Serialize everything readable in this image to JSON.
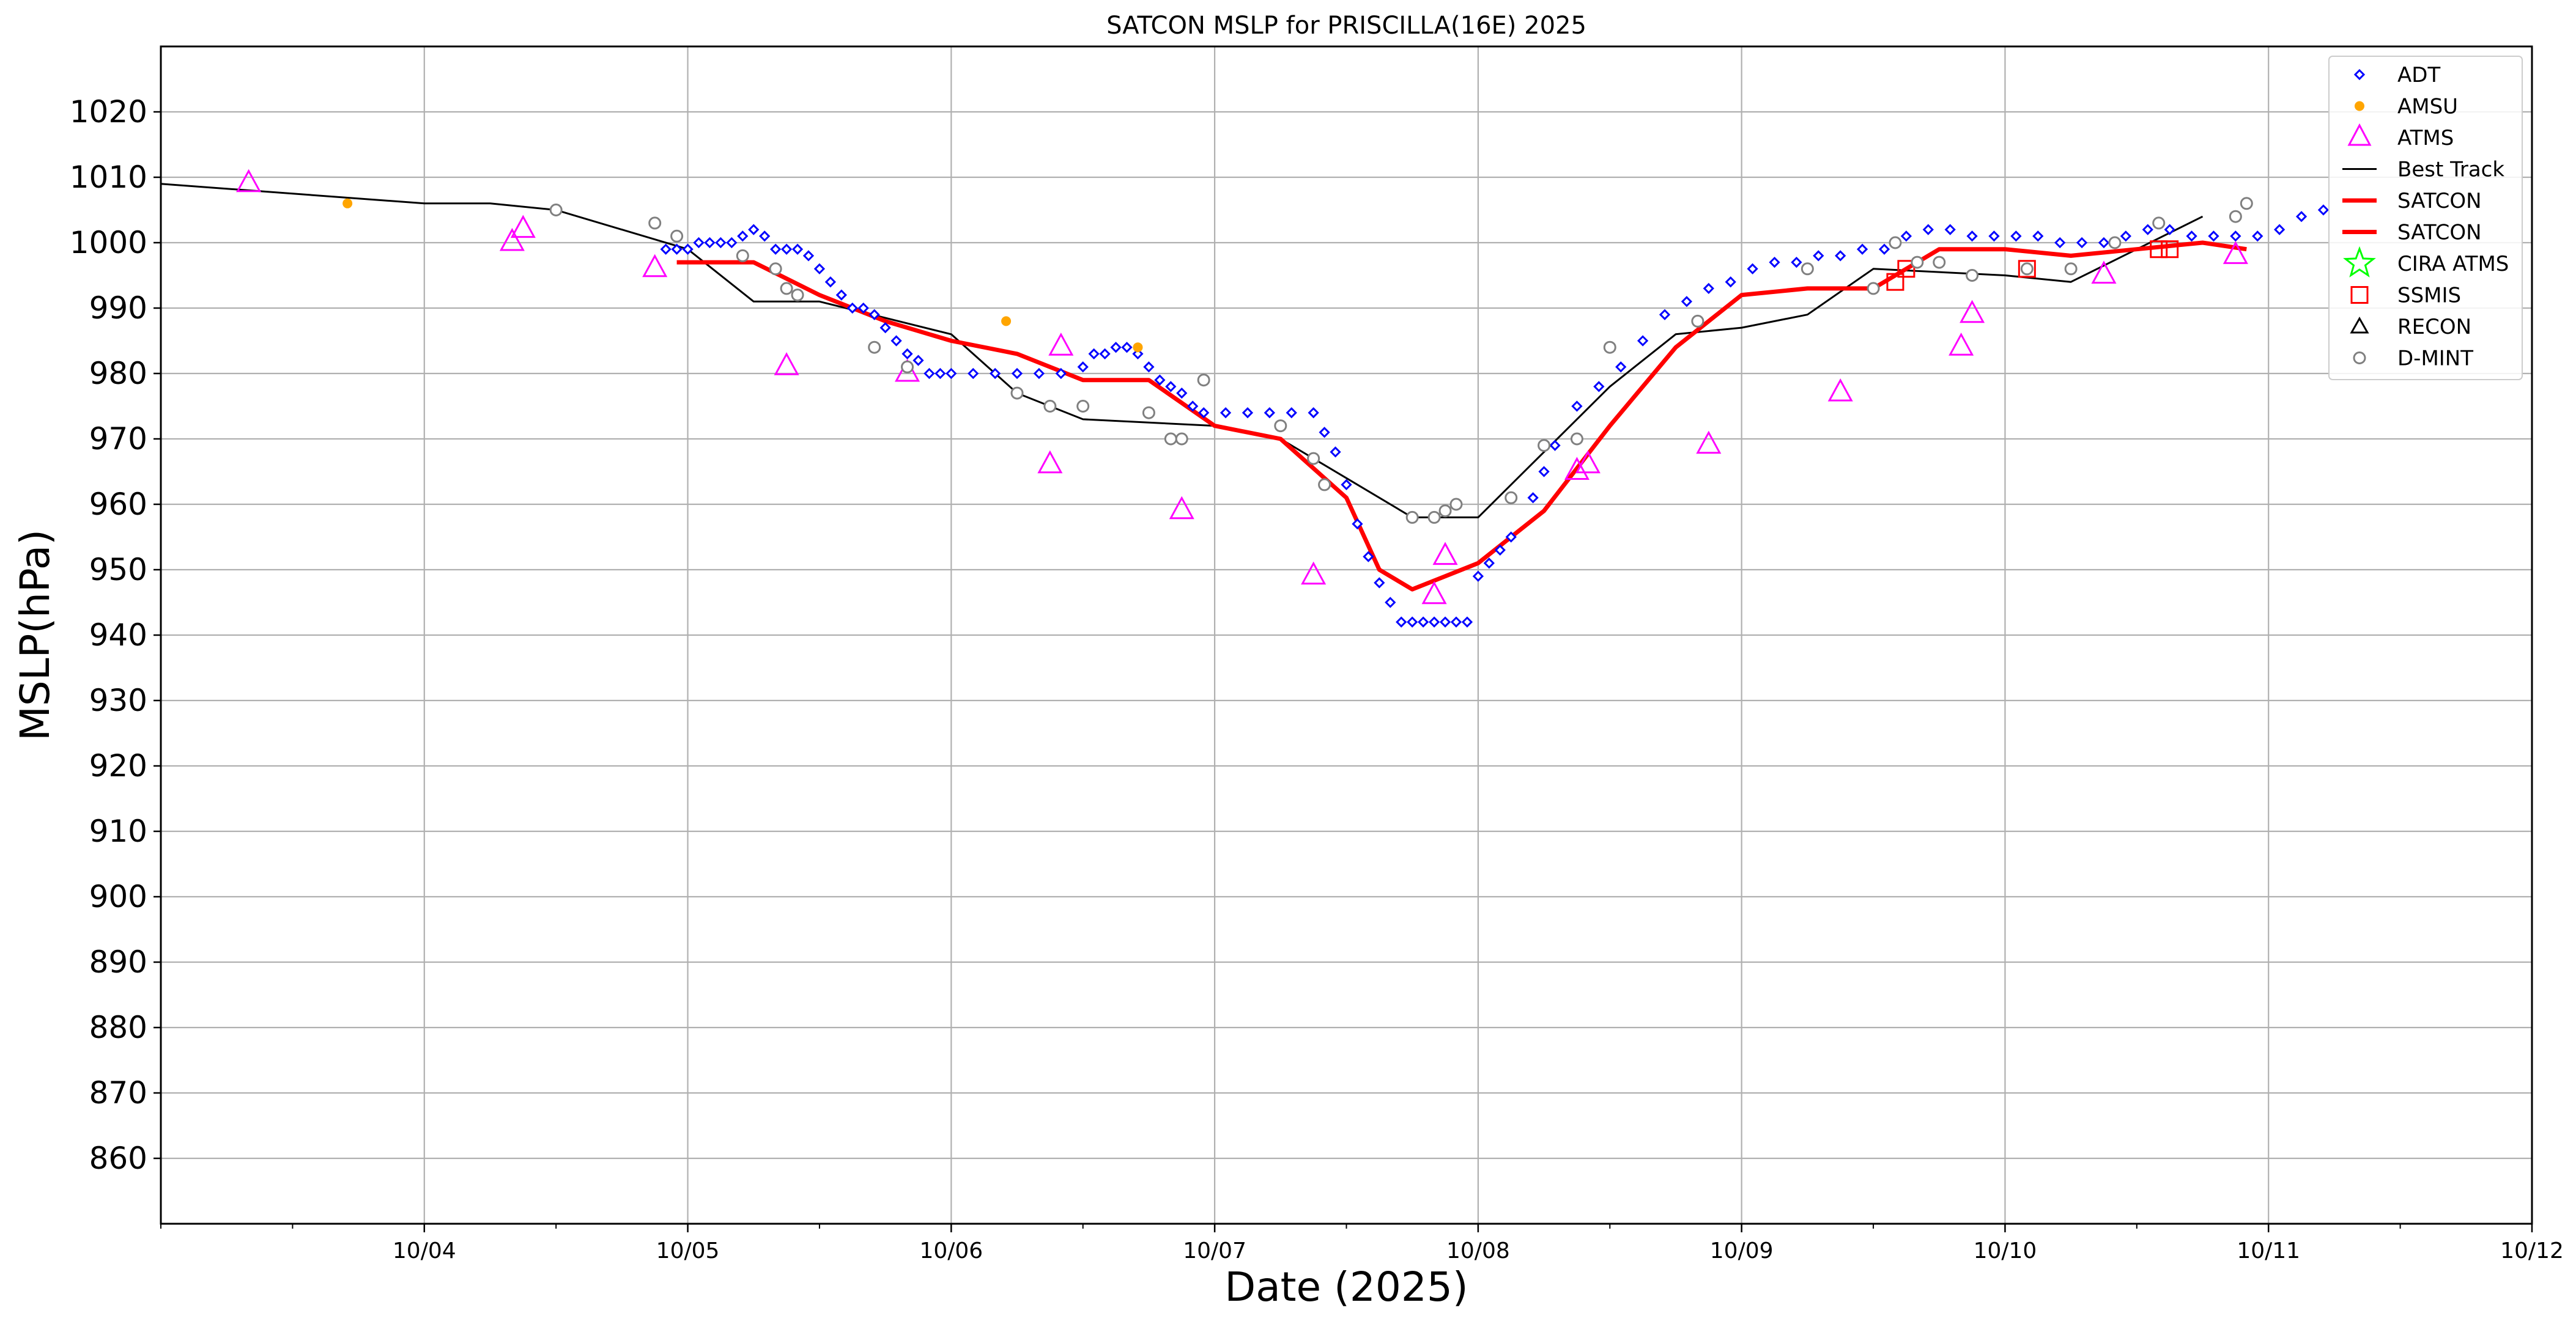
{
  "chart_data": {
    "type": "scatter",
    "title": "SATCON MSLP for PRISCILLA(16E) 2025",
    "xlabel": "Date (2025)",
    "ylabel": "MSLP(hPa)",
    "xlim": [
      "2025-10-03T00:00",
      "2025-10-12T00:00"
    ],
    "ylim": [
      850,
      1030
    ],
    "yticks": [
      860,
      870,
      880,
      890,
      900,
      910,
      920,
      930,
      940,
      950,
      960,
      970,
      980,
      990,
      1000,
      1010,
      1020
    ],
    "xticks": [
      {
        "date": "2025-10-04",
        "label": "10/04"
      },
      {
        "date": "2025-10-05",
        "label": "10/05"
      },
      {
        "date": "2025-10-06",
        "label": "10/06"
      },
      {
        "date": "2025-10-07",
        "label": "10/07"
      },
      {
        "date": "2025-10-08",
        "label": "10/08"
      },
      {
        "date": "2025-10-09",
        "label": "10/09"
      },
      {
        "date": "2025-10-10",
        "label": "10/10"
      },
      {
        "date": "2025-10-11",
        "label": "10/11"
      },
      {
        "date": "2025-10-12",
        "label": "10/12"
      }
    ],
    "grid": true,
    "legend_position": "top-right",
    "colors": {
      "adt": "#0000ff",
      "amsu": "#ffa500",
      "atms": "#ff00ff",
      "best_track": "#000000",
      "satcon": "#ff0000",
      "cira_atms": "#00ff00",
      "ssmis": "#ff0000",
      "recon": "#000000",
      "dmint": "#808080"
    },
    "legend": [
      {
        "key": "adt",
        "label": "ADT",
        "marker": "diamond"
      },
      {
        "key": "amsu",
        "label": "AMSU",
        "marker": "dot"
      },
      {
        "key": "atms",
        "label": "ATMS",
        "marker": "triangle"
      },
      {
        "key": "best_track",
        "label": "Best Track",
        "marker": "line"
      },
      {
        "key": "satcon",
        "label": "SATCON",
        "marker": "thickline"
      },
      {
        "key": "satcon",
        "label": "SATCON",
        "marker": "thickline"
      },
      {
        "key": "cira_atms",
        "label": "CIRA ATMS",
        "marker": "star"
      },
      {
        "key": "ssmis",
        "label": "SSMIS",
        "marker": "square"
      },
      {
        "key": "recon",
        "label": "RECON",
        "marker": "triangle"
      },
      {
        "key": "dmint",
        "label": "D-MINT",
        "marker": "circle"
      }
    ],
    "series": [
      {
        "name": "ADT",
        "kind": "scatter",
        "points": [
          [
            "2025-10-04T22:00",
            999
          ],
          [
            "2025-10-04T23:00",
            999
          ],
          [
            "2025-10-05T00:00",
            999
          ],
          [
            "2025-10-05T01:00",
            1000
          ],
          [
            "2025-10-05T02:00",
            1000
          ],
          [
            "2025-10-05T03:00",
            1000
          ],
          [
            "2025-10-05T04:00",
            1000
          ],
          [
            "2025-10-05T05:00",
            1001
          ],
          [
            "2025-10-05T06:00",
            1002
          ],
          [
            "2025-10-05T07:00",
            1001
          ],
          [
            "2025-10-05T08:00",
            999
          ],
          [
            "2025-10-05T09:00",
            999
          ],
          [
            "2025-10-05T10:00",
            999
          ],
          [
            "2025-10-05T11:00",
            998
          ],
          [
            "2025-10-05T12:00",
            996
          ],
          [
            "2025-10-05T13:00",
            994
          ],
          [
            "2025-10-05T14:00",
            992
          ],
          [
            "2025-10-05T15:00",
            990
          ],
          [
            "2025-10-05T16:00",
            990
          ],
          [
            "2025-10-05T17:00",
            989
          ],
          [
            "2025-10-05T18:00",
            987
          ],
          [
            "2025-10-05T19:00",
            985
          ],
          [
            "2025-10-05T20:00",
            983
          ],
          [
            "2025-10-05T21:00",
            982
          ],
          [
            "2025-10-05T22:00",
            980
          ],
          [
            "2025-10-05T23:00",
            980
          ],
          [
            "2025-10-06T00:00",
            980
          ],
          [
            "2025-10-06T02:00",
            980
          ],
          [
            "2025-10-06T04:00",
            980
          ],
          [
            "2025-10-06T06:00",
            980
          ],
          [
            "2025-10-06T08:00",
            980
          ],
          [
            "2025-10-06T10:00",
            980
          ],
          [
            "2025-10-06T12:00",
            981
          ],
          [
            "2025-10-06T13:00",
            983
          ],
          [
            "2025-10-06T14:00",
            983
          ],
          [
            "2025-10-06T15:00",
            984
          ],
          [
            "2025-10-06T16:00",
            984
          ],
          [
            "2025-10-06T17:00",
            983
          ],
          [
            "2025-10-06T18:00",
            981
          ],
          [
            "2025-10-06T19:00",
            979
          ],
          [
            "2025-10-06T20:00",
            978
          ],
          [
            "2025-10-06T21:00",
            977
          ],
          [
            "2025-10-06T22:00",
            975
          ],
          [
            "2025-10-06T23:00",
            974
          ],
          [
            "2025-10-07T01:00",
            974
          ],
          [
            "2025-10-07T03:00",
            974
          ],
          [
            "2025-10-07T05:00",
            974
          ],
          [
            "2025-10-07T07:00",
            974
          ],
          [
            "2025-10-07T09:00",
            974
          ],
          [
            "2025-10-07T10:00",
            971
          ],
          [
            "2025-10-07T11:00",
            968
          ],
          [
            "2025-10-07T12:00",
            963
          ],
          [
            "2025-10-07T13:00",
            957
          ],
          [
            "2025-10-07T14:00",
            952
          ],
          [
            "2025-10-07T15:00",
            948
          ],
          [
            "2025-10-07T16:00",
            945
          ],
          [
            "2025-10-07T17:00",
            942
          ],
          [
            "2025-10-07T18:00",
            942
          ],
          [
            "2025-10-07T19:00",
            942
          ],
          [
            "2025-10-07T20:00",
            942
          ],
          [
            "2025-10-07T21:00",
            942
          ],
          [
            "2025-10-07T22:00",
            942
          ],
          [
            "2025-10-07T23:00",
            942
          ],
          [
            "2025-10-08T00:00",
            949
          ],
          [
            "2025-10-08T01:00",
            951
          ],
          [
            "2025-10-08T02:00",
            953
          ],
          [
            "2025-10-08T03:00",
            955
          ],
          [
            "2025-10-08T05:00",
            961
          ],
          [
            "2025-10-08T06:00",
            965
          ],
          [
            "2025-10-08T07:00",
            969
          ],
          [
            "2025-10-08T09:00",
            975
          ],
          [
            "2025-10-08T11:00",
            978
          ],
          [
            "2025-10-08T13:00",
            981
          ],
          [
            "2025-10-08T15:00",
            985
          ],
          [
            "2025-10-08T17:00",
            989
          ],
          [
            "2025-10-08T19:00",
            991
          ],
          [
            "2025-10-08T21:00",
            993
          ],
          [
            "2025-10-08T23:00",
            994
          ],
          [
            "2025-10-09T01:00",
            996
          ],
          [
            "2025-10-09T03:00",
            997
          ],
          [
            "2025-10-09T05:00",
            997
          ],
          [
            "2025-10-09T07:00",
            998
          ],
          [
            "2025-10-09T09:00",
            998
          ],
          [
            "2025-10-09T11:00",
            999
          ],
          [
            "2025-10-09T13:00",
            999
          ],
          [
            "2025-10-09T15:00",
            1001
          ],
          [
            "2025-10-09T17:00",
            1002
          ],
          [
            "2025-10-09T19:00",
            1002
          ],
          [
            "2025-10-09T21:00",
            1001
          ],
          [
            "2025-10-09T23:00",
            1001
          ],
          [
            "2025-10-10T01:00",
            1001
          ],
          [
            "2025-10-10T03:00",
            1001
          ],
          [
            "2025-10-10T05:00",
            1000
          ],
          [
            "2025-10-10T07:00",
            1000
          ],
          [
            "2025-10-10T09:00",
            1000
          ],
          [
            "2025-10-10T11:00",
            1001
          ],
          [
            "2025-10-10T13:00",
            1002
          ],
          [
            "2025-10-10T15:00",
            1002
          ],
          [
            "2025-10-10T17:00",
            1001
          ],
          [
            "2025-10-10T19:00",
            1001
          ],
          [
            "2025-10-10T21:00",
            1001
          ],
          [
            "2025-10-10T23:00",
            1001
          ],
          [
            "2025-10-11T01:00",
            1002
          ],
          [
            "2025-10-11T03:00",
            1004
          ],
          [
            "2025-10-11T05:00",
            1005
          ]
        ]
      },
      {
        "name": "AMSU",
        "kind": "scatter",
        "points": [
          [
            "2025-10-03T17:00",
            1006
          ],
          [
            "2025-10-06T05:00",
            988
          ],
          [
            "2025-10-06T17:00",
            984
          ]
        ]
      },
      {
        "name": "ATMS",
        "kind": "scatter",
        "points": [
          [
            "2025-10-03T08:00",
            1009
          ],
          [
            "2025-10-04T08:00",
            1000
          ],
          [
            "2025-10-04T09:00",
            1002
          ],
          [
            "2025-10-04T21:00",
            996
          ],
          [
            "2025-10-05T09:00",
            981
          ],
          [
            "2025-10-05T20:00",
            980
          ],
          [
            "2025-10-06T09:00",
            966
          ],
          [
            "2025-10-06T10:00",
            984
          ],
          [
            "2025-10-06T21:00",
            959
          ],
          [
            "2025-10-07T09:00",
            949
          ],
          [
            "2025-10-07T20:00",
            946
          ],
          [
            "2025-10-07T21:00",
            952
          ],
          [
            "2025-10-08T09:00",
            965
          ],
          [
            "2025-10-08T10:00",
            966
          ],
          [
            "2025-10-08T21:00",
            969
          ],
          [
            "2025-10-09T09:00",
            977
          ],
          [
            "2025-10-09T20:00",
            984
          ],
          [
            "2025-10-09T21:00",
            989
          ],
          [
            "2025-10-10T09:00",
            995
          ],
          [
            "2025-10-10T21:00",
            998
          ]
        ]
      },
      {
        "name": "Best Track",
        "kind": "line",
        "points": [
          [
            "2025-10-03T00:00",
            1009
          ],
          [
            "2025-10-04T00:00",
            1006
          ],
          [
            "2025-10-04T06:00",
            1006
          ],
          [
            "2025-10-04T12:00",
            1005
          ],
          [
            "2025-10-05T00:00",
            999
          ],
          [
            "2025-10-05T06:00",
            991
          ],
          [
            "2025-10-05T12:00",
            991
          ],
          [
            "2025-10-06T00:00",
            986
          ],
          [
            "2025-10-06T06:00",
            977
          ],
          [
            "2025-10-06T12:00",
            973
          ],
          [
            "2025-10-07T00:00",
            972
          ],
          [
            "2025-10-07T06:00",
            970
          ],
          [
            "2025-10-07T12:00",
            964
          ],
          [
            "2025-10-07T18:00",
            958
          ],
          [
            "2025-10-08T00:00",
            958
          ],
          [
            "2025-10-08T06:00",
            968
          ],
          [
            "2025-10-08T12:00",
            978
          ],
          [
            "2025-10-08T18:00",
            986
          ],
          [
            "2025-10-09T00:00",
            987
          ],
          [
            "2025-10-09T06:00",
            989
          ],
          [
            "2025-10-09T12:00",
            996
          ],
          [
            "2025-10-10T00:00",
            995
          ],
          [
            "2025-10-10T06:00",
            994
          ],
          [
            "2025-10-10T12:00",
            999
          ],
          [
            "2025-10-10T18:00",
            1004
          ]
        ]
      },
      {
        "name": "SATCON",
        "kind": "thickline",
        "points": [
          [
            "2025-10-04T23:00",
            997
          ],
          [
            "2025-10-05T06:00",
            997
          ],
          [
            "2025-10-05T12:00",
            992
          ],
          [
            "2025-10-05T18:00",
            988
          ],
          [
            "2025-10-06T00:00",
            985
          ],
          [
            "2025-10-06T06:00",
            983
          ],
          [
            "2025-10-06T12:00",
            979
          ],
          [
            "2025-10-06T18:00",
            979
          ],
          [
            "2025-10-07T00:00",
            972
          ],
          [
            "2025-10-07T06:00",
            970
          ],
          [
            "2025-10-07T12:00",
            961
          ],
          [
            "2025-10-07T15:00",
            950
          ],
          [
            "2025-10-07T18:00",
            947
          ],
          [
            "2025-10-07T21:00",
            949
          ],
          [
            "2025-10-08T00:00",
            951
          ],
          [
            "2025-10-08T06:00",
            959
          ],
          [
            "2025-10-08T12:00",
            972
          ],
          [
            "2025-10-08T18:00",
            984
          ],
          [
            "2025-10-09T00:00",
            992
          ],
          [
            "2025-10-09T06:00",
            993
          ],
          [
            "2025-10-09T12:00",
            993
          ],
          [
            "2025-10-09T18:00",
            999
          ],
          [
            "2025-10-10T00:00",
            999
          ],
          [
            "2025-10-10T06:00",
            998
          ],
          [
            "2025-10-10T12:00",
            999
          ],
          [
            "2025-10-10T18:00",
            1000
          ],
          [
            "2025-10-10T22:00",
            999
          ]
        ]
      },
      {
        "name": "SSMIS",
        "kind": "scatter",
        "points": [
          [
            "2025-10-09T14:00",
            994
          ],
          [
            "2025-10-09T15:00",
            996
          ],
          [
            "2025-10-10T02:00",
            996
          ],
          [
            "2025-10-10T14:00",
            999
          ],
          [
            "2025-10-10T15:00",
            999
          ]
        ]
      },
      {
        "name": "D-MINT",
        "kind": "scatter",
        "points": [
          [
            "2025-10-04T12:00",
            1005
          ],
          [
            "2025-10-04T21:00",
            1003
          ],
          [
            "2025-10-04T23:00",
            1001
          ],
          [
            "2025-10-05T05:00",
            998
          ],
          [
            "2025-10-05T08:00",
            996
          ],
          [
            "2025-10-05T09:00",
            993
          ],
          [
            "2025-10-05T10:00",
            992
          ],
          [
            "2025-10-05T17:00",
            984
          ],
          [
            "2025-10-05T20:00",
            981
          ],
          [
            "2025-10-06T06:00",
            977
          ],
          [
            "2025-10-06T09:00",
            975
          ],
          [
            "2025-10-06T12:00",
            975
          ],
          [
            "2025-10-06T18:00",
            974
          ],
          [
            "2025-10-06T20:00",
            970
          ],
          [
            "2025-10-06T21:00",
            970
          ],
          [
            "2025-10-06T23:00",
            979
          ],
          [
            "2025-10-07T06:00",
            972
          ],
          [
            "2025-10-07T09:00",
            967
          ],
          [
            "2025-10-07T10:00",
            963
          ],
          [
            "2025-10-07T18:00",
            958
          ],
          [
            "2025-10-07T20:00",
            958
          ],
          [
            "2025-10-07T21:00",
            959
          ],
          [
            "2025-10-07T22:00",
            960
          ],
          [
            "2025-10-08T03:00",
            961
          ],
          [
            "2025-10-08T06:00",
            969
          ],
          [
            "2025-10-08T09:00",
            970
          ],
          [
            "2025-10-08T12:00",
            984
          ],
          [
            "2025-10-08T20:00",
            988
          ],
          [
            "2025-10-09T06:00",
            996
          ],
          [
            "2025-10-09T12:00",
            993
          ],
          [
            "2025-10-09T14:00",
            1000
          ],
          [
            "2025-10-09T16:00",
            997
          ],
          [
            "2025-10-09T18:00",
            997
          ],
          [
            "2025-10-09T21:00",
            995
          ],
          [
            "2025-10-10T02:00",
            996
          ],
          [
            "2025-10-10T06:00",
            996
          ],
          [
            "2025-10-10T10:00",
            1000
          ],
          [
            "2025-10-10T14:00",
            1003
          ],
          [
            "2025-10-10T21:00",
            1004
          ],
          [
            "2025-10-10T22:00",
            1006
          ]
        ]
      }
    ]
  }
}
